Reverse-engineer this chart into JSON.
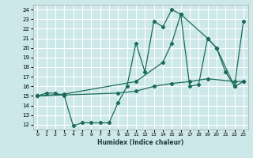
{
  "xlabel": "Humidex (Indice chaleur)",
  "bg_color": "#cde8e8",
  "grid_color": "#ffffff",
  "line_color": "#1a6b5a",
  "xlim": [
    -0.5,
    23.5
  ],
  "ylim": [
    11.5,
    24.5
  ],
  "xticks": [
    0,
    1,
    2,
    3,
    4,
    5,
    6,
    7,
    8,
    9,
    10,
    11,
    12,
    13,
    14,
    15,
    16,
    17,
    18,
    19,
    20,
    21,
    22,
    23
  ],
  "yticks": [
    12,
    13,
    14,
    15,
    16,
    17,
    18,
    19,
    20,
    21,
    22,
    23,
    24
  ],
  "series1_x": [
    0,
    1,
    2,
    3,
    4,
    5,
    6,
    7,
    8,
    9,
    10,
    11,
    12,
    13,
    14,
    15,
    16,
    17,
    18,
    19,
    20,
    21,
    22,
    23
  ],
  "series1_y": [
    15.0,
    15.3,
    15.3,
    15.0,
    11.9,
    12.2,
    12.2,
    12.2,
    12.2,
    14.3,
    16.0,
    20.5,
    17.5,
    22.8,
    22.2,
    24.0,
    23.5,
    16.0,
    16.2,
    21.0,
    20.0,
    17.5,
    16.0,
    16.5
  ],
  "series2_x": [
    0,
    3,
    9,
    11,
    13,
    15,
    17,
    19,
    22,
    23
  ],
  "series2_y": [
    15.0,
    15.1,
    15.3,
    15.5,
    16.0,
    16.3,
    16.5,
    16.8,
    16.5,
    16.5
  ],
  "series3_x": [
    0,
    3,
    11,
    14,
    15,
    16,
    19,
    20,
    22,
    23
  ],
  "series3_y": [
    15.0,
    15.2,
    16.5,
    18.5,
    20.5,
    23.5,
    21.0,
    20.0,
    16.0,
    22.8
  ]
}
